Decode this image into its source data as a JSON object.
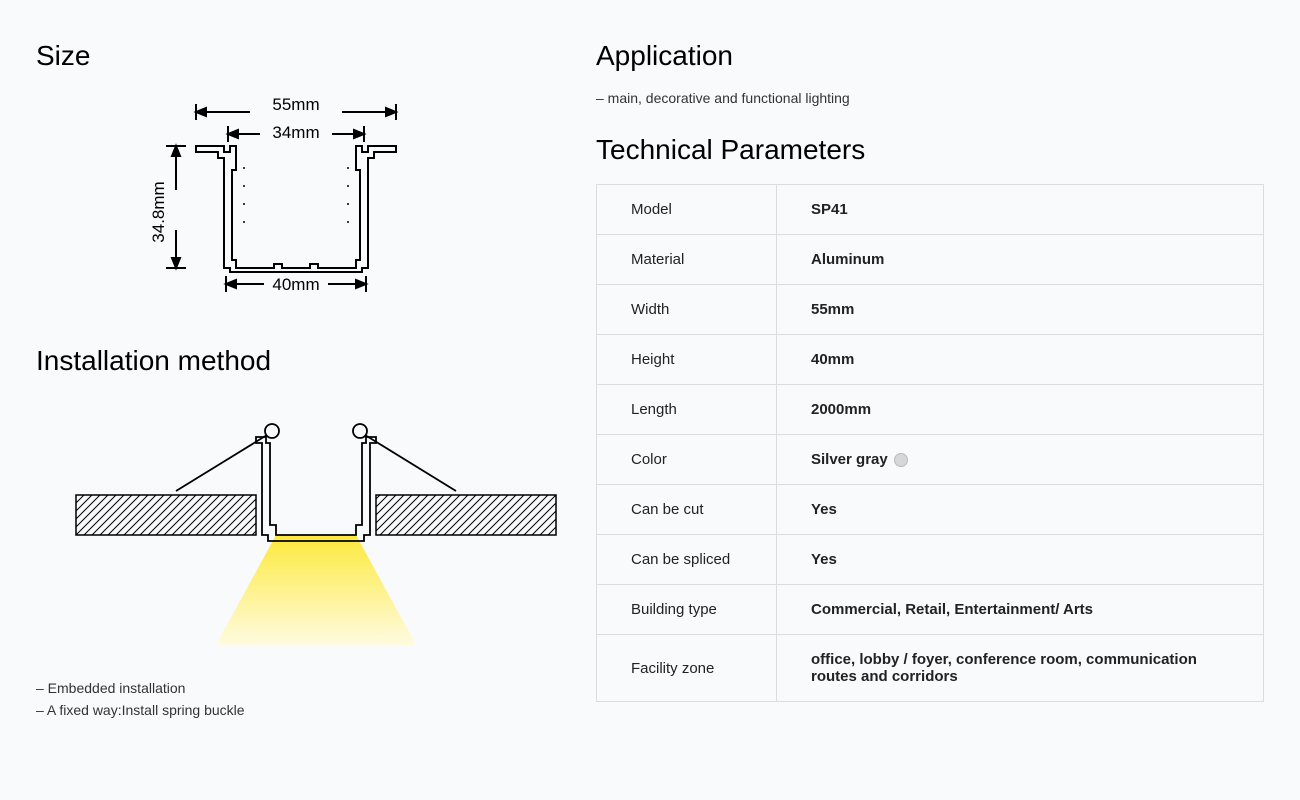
{
  "headings": {
    "size": "Size",
    "installation": "Installation method",
    "application": "Application",
    "tech": "Technical Parameters"
  },
  "size_diagram": {
    "top_width": "55mm",
    "inner_width": "34mm",
    "height": "34.8mm",
    "bottom_width": "40mm",
    "stroke": "#000000",
    "stroke_width": 2
  },
  "installation": {
    "notes": [
      "– Embedded installation",
      "– A fixed way:Install spring buckle"
    ],
    "diagram": {
      "light_color_top": "#fde93b",
      "light_color_bottom": "#fef9d6",
      "hatch_stroke": "#000000",
      "profile_stroke": "#000000"
    }
  },
  "application": {
    "note": "– main, decorative and functional lighting"
  },
  "params": {
    "rows": [
      {
        "label": "Model",
        "value": "SP41"
      },
      {
        "label": "Material",
        "value": "Aluminum"
      },
      {
        "label": "Width",
        "value": "55mm"
      },
      {
        "label": "Height",
        "value": "40mm"
      },
      {
        "label": "Length",
        "value": "2000mm"
      },
      {
        "label": "Color",
        "value": "Silver gray",
        "swatch": "#d7d7d7"
      },
      {
        "label": "Can be cut",
        "value": "Yes"
      },
      {
        "label": "Can be spliced",
        "value": "Yes"
      },
      {
        "label": "Building type",
        "value": "Commercial, Retail, Entertainment/ Arts"
      },
      {
        "label": "Facility zone",
        "value": "office, lobby / foyer, conference room, communication routes and corridors"
      }
    ]
  },
  "colors": {
    "page_bg": "#f9fafb",
    "border": "#d9dde0",
    "text": "#000000"
  }
}
